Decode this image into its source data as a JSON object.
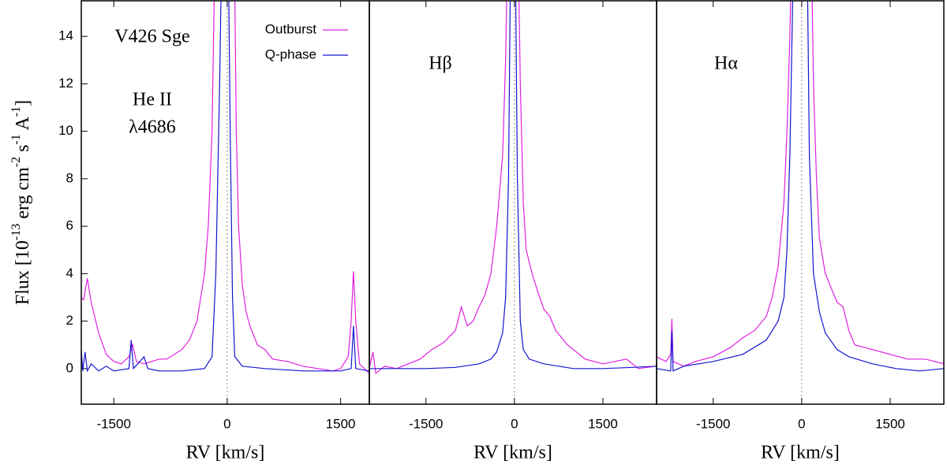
{
  "chart_data": [
    {
      "type": "line",
      "xlabel": "RV [km/s]",
      "ylabel": [
        "Flux [10",
        "-13",
        " erg cm",
        "-2",
        " s",
        "-1",
        " A",
        "-1",
        "]"
      ],
      "annotations": [
        "V426 Sge",
        "He II",
        "λ4686"
      ],
      "xlim": [
        -1930,
        1880
      ],
      "ylim": [
        -1.5,
        15.5
      ],
      "xticks": [
        -1500,
        0,
        1500
      ],
      "yticks": [
        0,
        2,
        4,
        6,
        8,
        10,
        12,
        14
      ],
      "legend": "upper right",
      "series": [
        {
          "name": "Outburst",
          "color": "#e020e0",
          "x": [
            -1930,
            -1900,
            -1850,
            -1800,
            -1700,
            -1600,
            -1500,
            -1400,
            -1300,
            -1250,
            -1200,
            -1100,
            -1000,
            -900,
            -800,
            -600,
            -500,
            -400,
            -300,
            -250,
            -200,
            -170,
            -100,
            0,
            100,
            120,
            150,
            200,
            250,
            300,
            400,
            500,
            600,
            800,
            1000,
            1200,
            1400,
            1500,
            1600,
            1640,
            1670,
            1700,
            1750,
            1880
          ],
          "values": [
            3.0,
            2.9,
            3.8,
            2.8,
            1.5,
            0.6,
            0.3,
            0.2,
            0.5,
            1.0,
            0.3,
            0.2,
            0.3,
            0.4,
            0.4,
            0.8,
            1.2,
            2.0,
            4.0,
            6,
            10,
            16,
            20,
            20,
            16,
            10,
            6,
            3.5,
            2.4,
            1.8,
            1.0,
            0.8,
            0.4,
            0.3,
            0.1,
            0.0,
            -0.1,
            0.0,
            0.5,
            2.0,
            4.1,
            2.0,
            0.2,
            -0.2
          ]
        },
        {
          "name": "Q-phase",
          "color": "#1515d0",
          "x": [
            -1930,
            -1910,
            -1880,
            -1850,
            -1800,
            -1700,
            -1600,
            -1500,
            -1300,
            -1270,
            -1240,
            -1100,
            -1050,
            -900,
            -600,
            -300,
            -200,
            -150,
            -100,
            -80,
            20,
            40,
            70,
            100,
            200,
            500,
            1000,
            1500,
            1640,
            1670,
            1700,
            1880
          ],
          "values": [
            0.8,
            -0.1,
            0.7,
            -0.1,
            0.2,
            -0.1,
            0.1,
            -0.1,
            0,
            1.2,
            0,
            0.5,
            0,
            -0.1,
            -0.1,
            0,
            0.5,
            4,
            12,
            16,
            16,
            10,
            3,
            0.5,
            0.1,
            0,
            -0.1,
            -0.1,
            0,
            1.8,
            0,
            -0.1
          ]
        }
      ]
    },
    {
      "type": "line",
      "xlabel": "RV [km/s]",
      "annotations": [
        "Hβ"
      ],
      "xlim": [
        -2460,
        2410
      ],
      "ylim": [
        -1.5,
        15.5
      ],
      "xticks": [
        -1500,
        0,
        1500
      ],
      "series": [
        {
          "name": "Outburst",
          "color": "#e020e0",
          "x": [
            -2460,
            -2400,
            -2350,
            -2200,
            -2000,
            -1800,
            -1600,
            -1400,
            -1200,
            -1000,
            -900,
            -800,
            -700,
            -600,
            -500,
            -400,
            -300,
            -200,
            -150,
            -100,
            50,
            100,
            150,
            200,
            300,
            400,
            500,
            600,
            700,
            800,
            900,
            1000,
            1200,
            1500,
            1700,
            1900,
            2100,
            2410
          ],
          "values": [
            0,
            0.7,
            -0.2,
            0.1,
            0,
            0.2,
            0.4,
            0.8,
            1.1,
            1.6,
            2.6,
            1.8,
            2.0,
            2.6,
            3.1,
            4.0,
            6.0,
            9,
            13,
            20,
            20,
            12,
            7,
            5,
            4,
            3.2,
            2.5,
            2.2,
            1.6,
            1.3,
            1.0,
            0.8,
            0.4,
            0.2,
            0.3,
            0.4,
            0,
            0.1
          ]
        },
        {
          "name": "Q-phase",
          "color": "#1515d0",
          "x": [
            -2460,
            -2000,
            -1500,
            -1000,
            -600,
            -400,
            -300,
            -200,
            -150,
            -100,
            -70,
            20,
            50,
            100,
            150,
            250,
            500,
            1000,
            1500,
            2000,
            2410
          ],
          "values": [
            0,
            0,
            0,
            0.05,
            0.2,
            0.4,
            0.7,
            1.5,
            3,
            8,
            16,
            16,
            8,
            2,
            0.8,
            0.4,
            0.2,
            0,
            0,
            0.05,
            0.1
          ]
        }
      ]
    },
    {
      "type": "line",
      "xlabel": "RV [km/s]",
      "annotations": [
        "Hα"
      ],
      "xlim": [
        -2460,
        2410
      ],
      "ylim": [
        -1.5,
        15.5
      ],
      "xticks": [
        -1500,
        0,
        1500
      ],
      "series": [
        {
          "name": "Outburst",
          "color": "#e020e0",
          "x": [
            -2460,
            -2300,
            -2220,
            -2200,
            -2180,
            -2000,
            -1800,
            -1500,
            -1200,
            -1000,
            -800,
            -600,
            -500,
            -400,
            -300,
            -250,
            -200,
            -150,
            150,
            200,
            250,
            300,
            400,
            500,
            600,
            700,
            800,
            900,
            1200,
            1500,
            1800,
            2100,
            2410
          ],
          "values": [
            0.5,
            0.3,
            0.6,
            2.1,
            0.3,
            0.1,
            0.3,
            0.5,
            0.9,
            1.3,
            1.6,
            2.2,
            3.0,
            4.3,
            7,
            10,
            14,
            20,
            20,
            12,
            8,
            5.5,
            4.0,
            3.4,
            2.8,
            2.6,
            1.6,
            1.0,
            0.8,
            0.6,
            0.4,
            0.4,
            0.2
          ]
        },
        {
          "name": "Q-phase",
          "color": "#1515d0",
          "x": [
            -2460,
            -2220,
            -2200,
            -2180,
            -2000,
            -1500,
            -1000,
            -600,
            -400,
            -300,
            -250,
            -200,
            -150,
            100,
            130,
            200,
            300,
            400,
            600,
            800,
            1200,
            1600,
            2000,
            2410
          ],
          "values": [
            0,
            -0.1,
            1.6,
            -0.1,
            0.1,
            0.3,
            0.6,
            1.2,
            2.0,
            3.0,
            5,
            9,
            16,
            16,
            9,
            4,
            2.4,
            1.5,
            0.8,
            0.5,
            0.2,
            0.0,
            -0.1,
            0
          ]
        }
      ]
    }
  ]
}
